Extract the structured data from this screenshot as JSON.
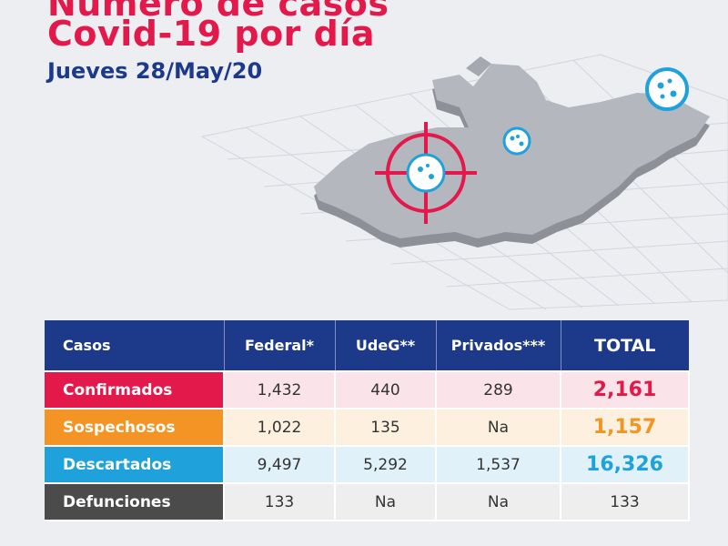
{
  "title": {
    "line1": "Número de casos",
    "line2": "Covid-19 por día",
    "date": "Jueves 28/May/20"
  },
  "colors": {
    "red": "#e4194b",
    "orange": "#f39424",
    "blue": "#1fa2dc",
    "navy": "#1d3a8a",
    "gray": "#4b4b4b"
  },
  "illustration": {
    "map_region": "Jalisco map outline",
    "icons": [
      "virus-icon",
      "virus-icon",
      "target-virus-icon"
    ]
  },
  "table": {
    "headers": {
      "casos": "Casos",
      "federal": "Federal*",
      "udeg": "UdeG**",
      "privados": "Privados***",
      "total": "TOTAL"
    },
    "rows": [
      {
        "label": "Confirmados",
        "federal": "1,432",
        "udeg": "440",
        "privados": "289",
        "total": "2,161"
      },
      {
        "label": "Sospechosos",
        "federal": "1,022",
        "udeg": "135",
        "privados": "Na",
        "total": "1,157"
      },
      {
        "label": "Descartados",
        "federal": "9,497",
        "udeg": "5,292",
        "privados": "1,537",
        "total": "16,326"
      },
      {
        "label": "Defunciones",
        "federal": "133",
        "udeg": "Na",
        "privados": "Na",
        "total": "133"
      }
    ]
  }
}
